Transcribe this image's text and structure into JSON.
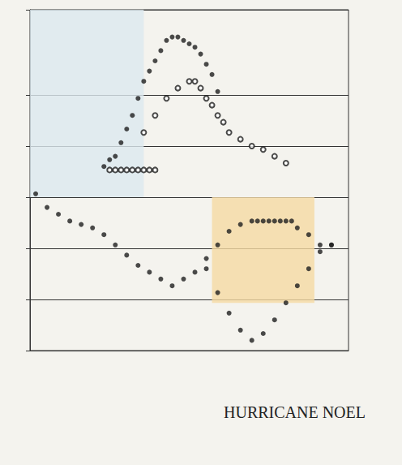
{
  "chart_data": {
    "type": "scatter",
    "title": "HURRICANE NOEL",
    "xlim": [
      0,
      56
    ],
    "ylim": [
      0,
      100
    ],
    "yticks": [
      0,
      15,
      30,
      45,
      60,
      75,
      100
    ],
    "tick_labels": false,
    "grid": true,
    "bands": [
      {
        "x": [
          0,
          20
        ],
        "y": [
          45,
          100
        ],
        "color": "#dce9ef"
      },
      {
        "x": [
          32,
          50
        ],
        "y": [
          14,
          45
        ],
        "color": "#f5d9a3"
      }
    ],
    "series": [
      {
        "color": "#1e1e1e",
        "marker": "circle",
        "x": [
          13,
          14,
          15,
          16,
          17,
          18,
          19,
          20,
          21,
          22,
          23,
          24,
          25,
          26,
          27,
          28,
          29,
          30,
          31,
          32,
          33
        ],
        "values": [
          54,
          56,
          57,
          61,
          65,
          69,
          74,
          79,
          82,
          85,
          88,
          91,
          92,
          92,
          91,
          90,
          89,
          87,
          84,
          81,
          76
        ]
      },
      {
        "color": "#1e1e1e",
        "marker": "open_circle",
        "x": [
          20,
          22,
          24,
          26,
          28,
          29,
          30,
          31,
          32,
          33,
          34,
          35,
          37,
          39,
          41,
          43,
          45
        ],
        "values": [
          64,
          69,
          74,
          77,
          79,
          79,
          77,
          74,
          72,
          69,
          67,
          64,
          62,
          60,
          59,
          57,
          55
        ]
      },
      {
        "color": "#1e1e1e",
        "marker": "open_circle",
        "x": [
          14,
          15,
          16,
          17,
          18,
          19,
          20,
          21,
          22
        ],
        "values": [
          53,
          53,
          53,
          53,
          53,
          53,
          53,
          53,
          53
        ]
      },
      {
        "color": "#1e1e1e",
        "marker": "circle",
        "x": [
          1,
          3,
          5,
          7,
          9,
          11,
          13,
          15,
          17,
          19,
          21,
          23,
          25,
          27,
          29,
          31,
          33,
          35,
          37,
          39,
          40,
          41,
          42,
          43,
          44,
          45,
          46,
          47,
          49,
          51,
          53
        ],
        "values": [
          46,
          42,
          40,
          38,
          37,
          36,
          34,
          31,
          28,
          25,
          23,
          21,
          19,
          21,
          23,
          27,
          31,
          35,
          37,
          38,
          38,
          38,
          38,
          38,
          38,
          38,
          38,
          36,
          34,
          31,
          31
        ]
      },
      {
        "color": "#1e1e1e",
        "marker": "circle",
        "x": [
          31,
          33,
          35,
          37,
          39,
          41,
          43,
          45,
          47,
          49,
          51,
          53
        ],
        "values": [
          24,
          17,
          11,
          6,
          3,
          5,
          9,
          14,
          19,
          24,
          29,
          31
        ]
      }
    ]
  }
}
